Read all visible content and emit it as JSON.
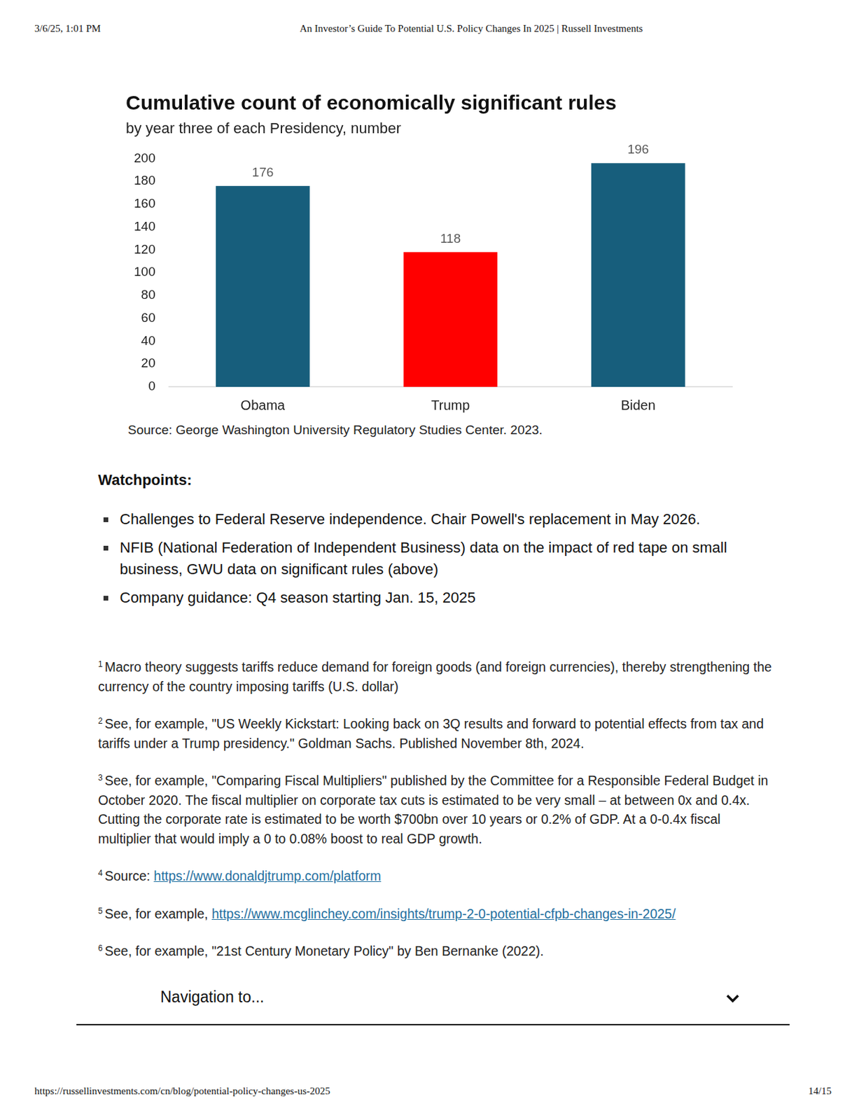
{
  "header": {
    "datetime": "3/6/25, 1:01 PM",
    "title": "An Investor’s Guide To Potential U.S. Policy Changes In 2025 | Russell Investments"
  },
  "chart_data": {
    "type": "bar",
    "title": "Cumulative count of economically significant rules",
    "subtitle": "by year three of each Presidency, number",
    "categories": [
      "Obama",
      "Trump",
      "Biden"
    ],
    "values": [
      176,
      118,
      196
    ],
    "colors": [
      "#175e7c",
      "#ff0000",
      "#175e7c"
    ],
    "ylim": [
      0,
      200
    ],
    "yticks": [
      0,
      20,
      40,
      60,
      80,
      100,
      120,
      140,
      160,
      180,
      200
    ],
    "grid": false,
    "data_labels": true,
    "source": "Source: George Washington University Regulatory Studies Center. 2023."
  },
  "watchpoints": {
    "heading": "Watchpoints:",
    "items": [
      "Challenges to Federal Reserve independence. Chair Powell's replacement in May 2026.",
      "NFIB (National Federation of Independent Business) data on the impact of red tape on small business, GWU data on significant rules (above)",
      "Company guidance: Q4 season starting Jan. 15, 2025"
    ]
  },
  "footnotes": [
    {
      "mark": "1",
      "text": "Macro theory suggests tariffs reduce demand for foreign goods (and foreign currencies), thereby strengthening the currency of the country imposing tariffs (U.S. dollar)"
    },
    {
      "mark": "2",
      "text": "See, for example, \"US Weekly Kickstart: Looking back on 3Q results and forward to potential effects from tax and tariffs under a Trump presidency.\" Goldman Sachs. Published November 8th, 2024."
    },
    {
      "mark": "3",
      "text": "See, for example, \"Comparing Fiscal Multipliers\" published by the Committee for a Responsible Federal Budget in October 2020. The fiscal multiplier on corporate tax cuts is estimated to be very small – at between 0x and 0.4x. Cutting the corporate rate is estimated to be worth $700bn over 10 years or 0.2% of GDP. At a 0-0.4x fiscal multiplier that would imply a 0 to 0.08% boost to real GDP growth."
    },
    {
      "mark": "4",
      "text": "Source: ",
      "link": "https://www.donaldjtrump.com/platform"
    },
    {
      "mark": "5",
      "text": "See, for example, ",
      "link": "https://www.mcglinchey.com/insights/trump-2-0-potential-cfpb-changes-in-2025/"
    },
    {
      "mark": "6",
      "text": "See, for example, \"21st Century Monetary Policy\" by Ben Bernanke (2022)."
    }
  ],
  "navigation": "Navigation to...",
  "footer": {
    "url": "https://russellinvestments.com/cn/blog/potential-policy-changes-us-2025",
    "page": "14/15"
  }
}
